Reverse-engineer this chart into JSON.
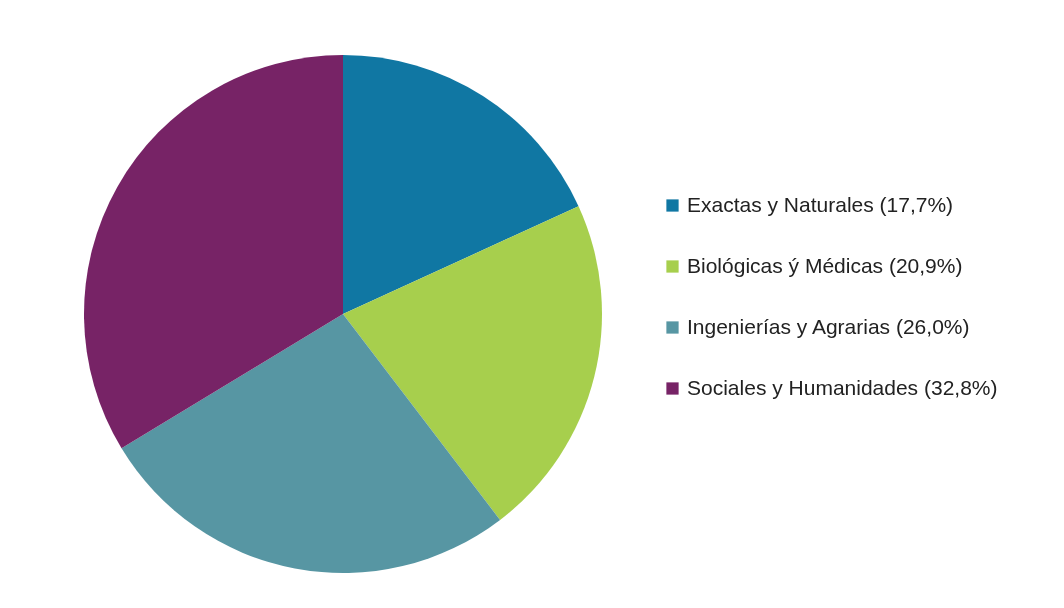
{
  "chart_data": {
    "type": "pie",
    "categories": [
      "Exactas y Naturales (17,7%)",
      "Biológicas ý Médicas (20,9%)",
      "Ingenierías y Agrarias (26,0%)",
      "Sociales y Humanidades (32,8%)"
    ],
    "values": [
      17.7,
      20.9,
      26.0,
      32.8
    ],
    "colors": [
      "#1077a3",
      "#a7cf4d",
      "#5796a3",
      "#772366"
    ],
    "legend": "right"
  }
}
